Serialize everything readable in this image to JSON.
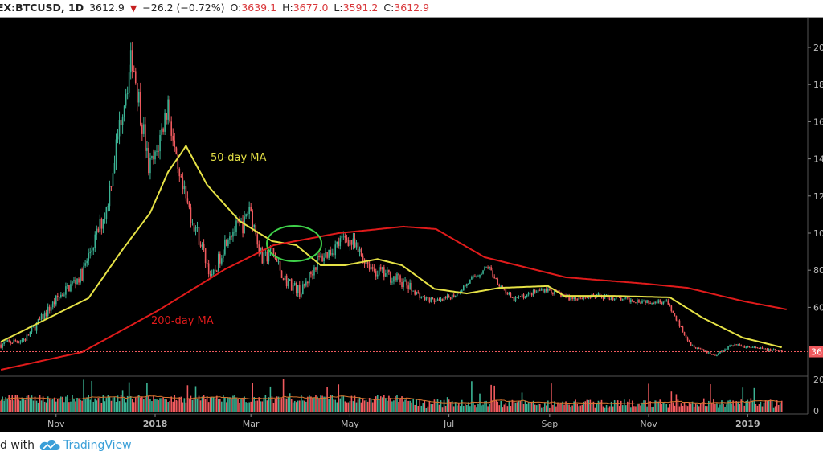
{
  "header": {
    "symbol": "EX:BTCUSD, 1D",
    "last": "3612.9",
    "change": "−26.2 (−0.72%)",
    "open_label": "O:",
    "open": "3639.1",
    "high_label": "H:",
    "high": "3677.0",
    "low_label": "L:",
    "low": "3591.2",
    "close_label": "C:",
    "close": "3612.9",
    "direction_icon": "triangle-down-icon"
  },
  "footer": {
    "prefix": "d with",
    "brand": "TradingView",
    "logo_icon": "tradingview-cloud-icon"
  },
  "colors": {
    "up": "#3bb394",
    "down": "#f05a5e",
    "ma50": "#e6e246",
    "ma200": "#e01b1b",
    "highlight": "#3fd14a",
    "brand": "#3a9fd8",
    "volume_ma": "#d8752e"
  },
  "chart_data": {
    "type": "candlestick",
    "symbol": "BTCUSD",
    "interval": "1D",
    "x_axis": {
      "ticks": [
        "Nov",
        "2018",
        "Mar",
        "May",
        "Jul",
        "Sep",
        "Nov",
        "2019"
      ],
      "tick_dates": [
        "2017-11-01",
        "2018-01-01",
        "2018-03-01",
        "2018-05-01",
        "2018-07-01",
        "2018-09-01",
        "2018-11-01",
        "2019-01-01"
      ],
      "range": [
        "2017-09-28",
        "2019-01-22"
      ]
    },
    "y_axis": {
      "ticks": [
        "20",
        "18",
        "16",
        "14",
        "12",
        "10",
        "80",
        "60"
      ],
      "tick_values": [
        20000,
        18000,
        16000,
        14000,
        12000,
        10000,
        8000,
        6000
      ],
      "range": [
        1500,
        21700
      ],
      "scale": "linear",
      "last_price_tag": "36",
      "last_price": 3612.9
    },
    "volume_axis": {
      "ticks": [
        "20",
        "0"
      ]
    },
    "close_approx": [
      [
        "2017-09-28",
        4000
      ],
      [
        "2017-10-13",
        4300
      ],
      [
        "2017-11-02",
        6500
      ],
      [
        "2017-11-17",
        7800
      ],
      [
        "2017-12-02",
        11300
      ],
      [
        "2017-12-12",
        16900
      ],
      [
        "2017-12-18",
        19500
      ],
      [
        "2017-12-24",
        16000
      ],
      [
        "2017-12-28",
        13500
      ],
      [
        "2018-01-01",
        14000
      ],
      [
        "2018-01-09",
        17000
      ],
      [
        "2018-01-15",
        13000
      ],
      [
        "2018-01-21",
        11500
      ],
      [
        "2018-01-29",
        9500
      ],
      [
        "2018-02-05",
        7500
      ],
      [
        "2018-02-15",
        10000
      ],
      [
        "2018-02-25",
        10500
      ],
      [
        "2018-02-28",
        11500
      ],
      [
        "2018-03-08",
        8500
      ],
      [
        "2018-03-14",
        9000
      ],
      [
        "2018-03-22",
        7500
      ],
      [
        "2018-04-01",
        6800
      ],
      [
        "2018-04-11",
        8500
      ],
      [
        "2018-04-21",
        9200
      ],
      [
        "2018-04-29",
        9800
      ],
      [
        "2018-05-06",
        9000
      ],
      [
        "2018-05-16",
        8000
      ],
      [
        "2018-05-31",
        7500
      ],
      [
        "2018-06-15",
        6500
      ],
      [
        "2018-06-25",
        6300
      ],
      [
        "2018-07-05",
        6700
      ],
      [
        "2018-07-15",
        7500
      ],
      [
        "2018-07-25",
        8200
      ],
      [
        "2018-07-30",
        7500
      ],
      [
        "2018-08-09",
        6400
      ],
      [
        "2018-08-29",
        7000
      ],
      [
        "2018-09-13",
        6500
      ],
      [
        "2018-10-03",
        6600
      ],
      [
        "2018-10-18",
        6400
      ],
      [
        "2018-11-12",
        6300
      ],
      [
        "2018-11-17",
        5500
      ],
      [
        "2018-11-27",
        4000
      ],
      [
        "2018-12-12",
        3400
      ],
      [
        "2018-12-22",
        4000
      ],
      [
        "2019-01-06",
        3800
      ],
      [
        "2019-01-22",
        3612.9
      ]
    ],
    "series": [
      {
        "name": "50-day MA",
        "type": "line",
        "points": [
          [
            "2017-09-28",
            4150
          ],
          [
            "2017-11-21",
            6500
          ],
          [
            "2017-12-11",
            9000
          ],
          [
            "2017-12-29",
            11100
          ],
          [
            "2018-01-09",
            13300
          ],
          [
            "2018-01-17",
            14300
          ],
          [
            "2018-01-20",
            14700
          ],
          [
            "2018-02-02",
            12600
          ],
          [
            "2018-02-22",
            10650
          ],
          [
            "2018-03-14",
            9570
          ],
          [
            "2018-03-29",
            9350
          ],
          [
            "2018-04-13",
            8270
          ],
          [
            "2018-04-28",
            8270
          ],
          [
            "2018-05-18",
            8600
          ],
          [
            "2018-06-02",
            8270
          ],
          [
            "2018-06-22",
            7000
          ],
          [
            "2018-07-12",
            6750
          ],
          [
            "2018-08-01",
            7050
          ],
          [
            "2018-08-31",
            7150
          ],
          [
            "2018-09-10",
            6620
          ],
          [
            "2018-10-10",
            6620
          ],
          [
            "2018-11-14",
            6540
          ],
          [
            "2018-12-04",
            5450
          ],
          [
            "2018-12-29",
            4370
          ],
          [
            "2019-01-22",
            3850
          ]
        ]
      },
      {
        "name": "200-day MA",
        "type": "line",
        "points": [
          [
            "2017-09-28",
            2640
          ],
          [
            "2017-11-17",
            3590
          ],
          [
            "2018-01-04",
            5890
          ],
          [
            "2018-02-13",
            8050
          ],
          [
            "2018-03-15",
            9350
          ],
          [
            "2018-04-24",
            10000
          ],
          [
            "2018-06-03",
            10350
          ],
          [
            "2018-06-23",
            10220
          ],
          [
            "2018-07-23",
            8700
          ],
          [
            "2018-09-11",
            7620
          ],
          [
            "2018-10-31",
            7270
          ],
          [
            "2018-11-25",
            7050
          ],
          [
            "2018-12-30",
            6320
          ],
          [
            "2019-01-25",
            5890
          ]
        ]
      }
    ],
    "annotations": [
      {
        "text": "50-day MA",
        "color": "#e6e246"
      },
      {
        "text": "200-day MA",
        "color": "#e01b1b"
      },
      {
        "shape": "ellipse",
        "note": "",
        "color": "#3fd14a",
        "center": [
          "2018-03-25",
          9400
        ]
      }
    ]
  }
}
